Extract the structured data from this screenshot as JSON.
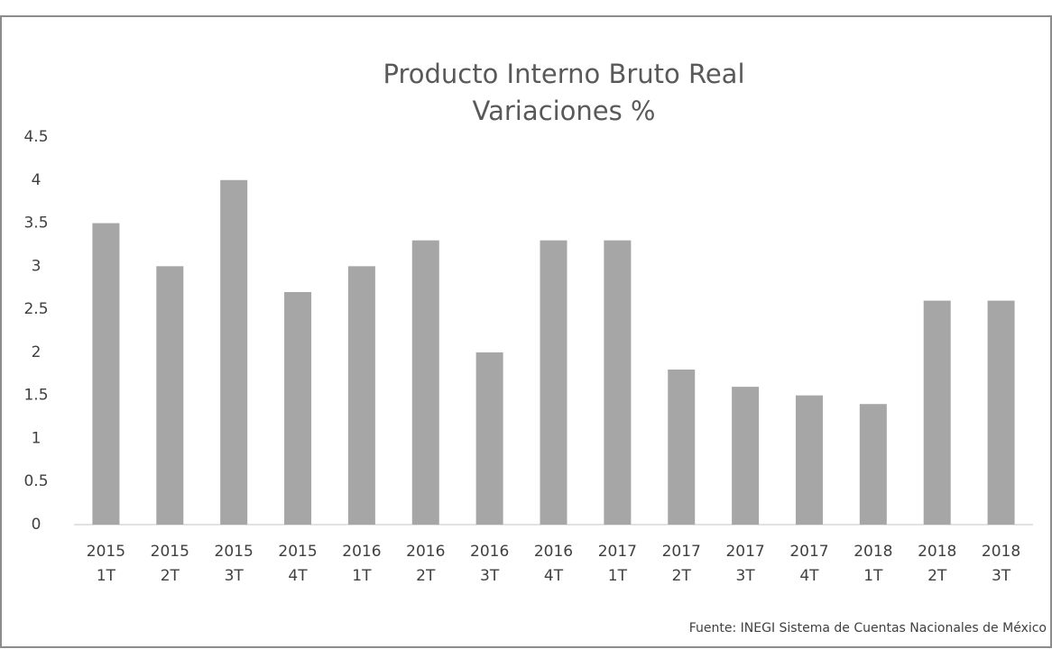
{
  "chart_data": {
    "type": "bar",
    "title": "Producto Interno Bruto Real",
    "subtitle": "Variaciones %",
    "categories": [
      "2015 1T",
      "2015 2T",
      "2015 3T",
      "2015 4T",
      "2016 1T",
      "2016 2T",
      "2016 3T",
      "2016 4T",
      "2017 1T",
      "2017 2T",
      "2017 3T",
      "2017 4T",
      "2018 1T",
      "2018 2T",
      "2018 3T"
    ],
    "values": [
      3.5,
      3.0,
      4.0,
      2.7,
      3.0,
      3.3,
      2.0,
      3.3,
      3.3,
      1.8,
      1.6,
      1.5,
      1.4,
      2.6,
      2.6
    ],
    "color": "#a6a6a6",
    "ylim": [
      0,
      4.5
    ],
    "yticks": [
      0,
      0.5,
      1,
      1.5,
      2,
      2.5,
      3,
      3.5,
      4,
      4.5
    ],
    "grid": false,
    "annotation": "Fuente: INEGI Sistema de Cuentas Nacionales de México"
  }
}
